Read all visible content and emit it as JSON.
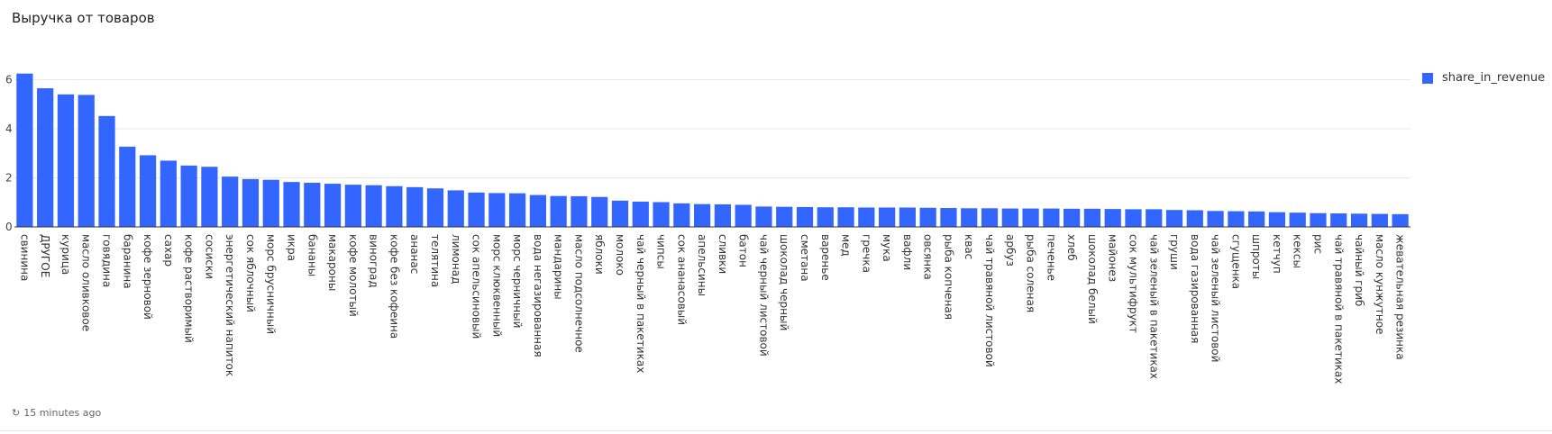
{
  "panel": {
    "title": "Выручка от товаров",
    "refresh_text": "15 minutes ago",
    "refresh_icon": "refresh-icon"
  },
  "colors": {
    "bar": "#3366ff",
    "grid": "#e8e8e8",
    "axis": "#333333"
  },
  "chart_data": {
    "type": "bar",
    "title": "Выручка от товаров",
    "xlabel": "",
    "ylabel": "",
    "ylim": [
      0,
      6.6
    ],
    "yticks": [
      0,
      2,
      4,
      6
    ],
    "grid": true,
    "legend_position": "right",
    "categories": [
      "свинина",
      "ДРУГОЕ",
      "курица",
      "масло оливковое",
      "говядина",
      "баранина",
      "кофе зерновой",
      "сахар",
      "кофе растворимый",
      "сосиски",
      "энергетический напиток",
      "сок яблочный",
      "морс брусничный",
      "икра",
      "бананы",
      "макароны",
      "кофе молотый",
      "виноград",
      "кофе без кофеина",
      "ананас",
      "телятина",
      "лимонад",
      "сок апельсиновый",
      "морс клюквенный",
      "морс черничный",
      "вода негазированная",
      "мандарины",
      "масло подсолнечное",
      "яблоки",
      "молоко",
      "чай черный в пакетиках",
      "чипсы",
      "сок ананасовый",
      "апельсины",
      "сливки",
      "батон",
      "чай черный листовой",
      "шоколад черный",
      "сметана",
      "варенье",
      "мед",
      "гречка",
      "мука",
      "вафли",
      "овсянка",
      "рыба копченая",
      "квас",
      "чай травяной листовой",
      "арбуз",
      "рыба соленая",
      "печенье",
      "хлеб",
      "шоколад белый",
      "майонез",
      "сок мультифрукт",
      "чай зеленый в пакетиках",
      "груши",
      "вода газированная",
      "чай зеленый листовой",
      "сгущенка",
      "шпроты",
      "кетчуп",
      "кексы",
      "рис",
      "чай травяной в пакетиках",
      "чайный гриб",
      "масло кунжутное",
      "жевательная резинка"
    ],
    "series": [
      {
        "name": "share_in_revenue",
        "values": [
          6.25,
          5.65,
          5.4,
          5.38,
          4.52,
          3.27,
          2.92,
          2.7,
          2.5,
          2.45,
          2.05,
          1.95,
          1.92,
          1.83,
          1.8,
          1.76,
          1.72,
          1.7,
          1.66,
          1.62,
          1.57,
          1.49,
          1.4,
          1.38,
          1.37,
          1.3,
          1.26,
          1.25,
          1.22,
          1.07,
          1.03,
          1.01,
          0.96,
          0.93,
          0.92,
          0.9,
          0.83,
          0.82,
          0.81,
          0.8,
          0.8,
          0.79,
          0.79,
          0.79,
          0.78,
          0.77,
          0.76,
          0.76,
          0.75,
          0.75,
          0.75,
          0.74,
          0.74,
          0.73,
          0.72,
          0.72,
          0.69,
          0.68,
          0.65,
          0.64,
          0.63,
          0.6,
          0.58,
          0.56,
          0.55,
          0.54,
          0.53,
          0.52
        ]
      }
    ]
  }
}
